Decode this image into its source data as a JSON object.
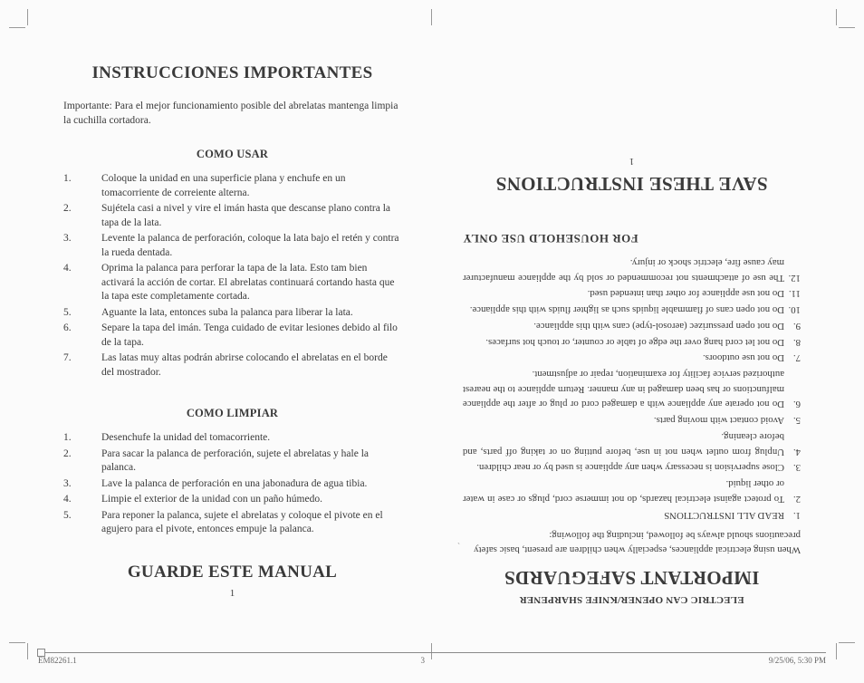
{
  "colors": {
    "page_bg": "#fbfbfb",
    "text": "#3a3a3a",
    "rule": "#888888"
  },
  "typography": {
    "body_family": "Times New Roman",
    "title_size_pt": 19,
    "sub_size_pt": 12.5,
    "body_size_pt": 11.5,
    "right_body_size_pt": 10.8
  },
  "left": {
    "title": "INSTRUCCIONES IMPORTANTES",
    "intro": "Importante: Para el mejor funcionamiento posible del abrelatas mantenga limpia la cuchilla cortadora.",
    "section1_title": "COMO USAR",
    "usar": [
      "Coloque la unidad en una superficie plana y enchufe en un tomacorriente de correiente alterna.",
      "Sujétela casi a nivel y vire el imán hasta que descanse plano contra la tapa de la lata.",
      "Levente la palanca de perforación, coloque la lata bajo el retén y contra la rueda dentada.",
      "Oprima la palanca para perforar la tapa de la lata. Esto tam bien activará la acción de cortar. El abrelatas continuará cortando hasta que la tapa este completamente cortada.",
      "Aguante la lata, entonces suba la palanca para liberar la lata.",
      "Separe la tapa del imán. Tenga cuidado de evitar lesiones debido al filo de la tapa.",
      "Las latas muy altas podrán abrirse colocando el abrelatas en el borde del mostrador."
    ],
    "section2_title": "COMO LIMPIAR",
    "limpiar": [
      "Desenchufe la unidad del tomacorriente.",
      "Para sacar la palanca de perforación, sujete el abrelatas y hale la palanca.",
      "Lave la palanca de perforación en una jabonadura de agua tibia.",
      "Limpie el exterior de la unidad con un paño húmedo.",
      "Para reponer la palanca, sujete el abrelatas y coloque el pivote en el agujero para el pivote, entonces empuje la palanca."
    ],
    "closing": "GUARDE ESTE MANUAL",
    "pagenum": "1"
  },
  "right": {
    "product_line": "ELECTRIC CAN OPENER/KNIFE SHARPENER",
    "title": "IMPORTANT SAFEGUARDS",
    "intro": "When using electrical appliances, especially when children are present, basic safety precautions should always be followed, including the following:",
    "items": [
      "READ ALL INSTRUCTIONS",
      "To protect against electrical hazards, do not immerse cord, plugs or case in water or other liquid.",
      "Close supervision is necessary when any appliance is used by or near children.",
      "Unplug from outlet when not in use, before putting on or taking off parts, and before cleaning.",
      "Avoid contact with moving parts.",
      "Do not operate any appliance with a damaged cord or plug or after the appliance malfunctions or has been damaged in any manner. Return appliance to the nearest authorized service facility for examination, repair or adjustment.",
      "Do not use outdoors.",
      "Do not let cord hang over the edge of table or counter, or touch hot surfaces.",
      "Do not open pressurizec (aerosol-type) cans with this appliance.",
      "Do not open cans of flammable liquids such as lighter fluids with this appliance.",
      "Do not use appliance for other than intended used.",
      "The use of attachments not recommended or sold by the appliance manufacturer may cause fire, electric shock or injury."
    ],
    "household": "FOR HOUSEHOLD USE ONLY",
    "tick": "`",
    "closing": "SAVE THESE INSTRUCTIONS",
    "pagenum": "1"
  },
  "footer": {
    "file": "EM82261.1",
    "page": "3",
    "timestamp": "9/25/06, 5:30 PM"
  }
}
